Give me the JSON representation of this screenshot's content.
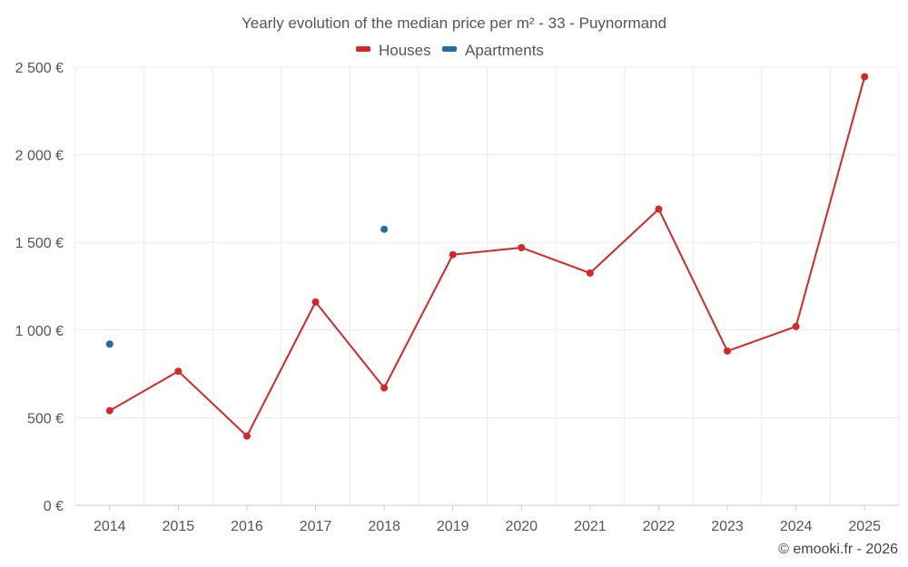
{
  "chart_data": {
    "type": "line",
    "title": "Yearly evolution of the median price per m² - 33 - Puynormand",
    "categories": [
      "2014",
      "2015",
      "2016",
      "2017",
      "2018",
      "2019",
      "2020",
      "2021",
      "2022",
      "2023",
      "2024",
      "2025"
    ],
    "series": [
      {
        "name": "Houses",
        "color": "#d62728",
        "values": [
          540,
          765,
          395,
          1160,
          670,
          1430,
          1470,
          1325,
          1690,
          880,
          1020,
          2445
        ]
      },
      {
        "name": "Apartments",
        "color": "#1f6fa8",
        "values": [
          920,
          null,
          null,
          null,
          1575,
          null,
          null,
          null,
          null,
          null,
          null,
          null
        ]
      }
    ],
    "ylim": [
      0,
      2500
    ],
    "yticks": [
      0,
      500,
      1000,
      1500,
      2000,
      2500
    ],
    "ytick_labels": [
      "0 €",
      "500 €",
      "1 000 €",
      "1 500 €",
      "2 000 €",
      "2 500 €"
    ],
    "xlabel": "",
    "ylabel": "",
    "grid": true,
    "legend": "top-center"
  },
  "credit": "© emooki.fr - 2026"
}
